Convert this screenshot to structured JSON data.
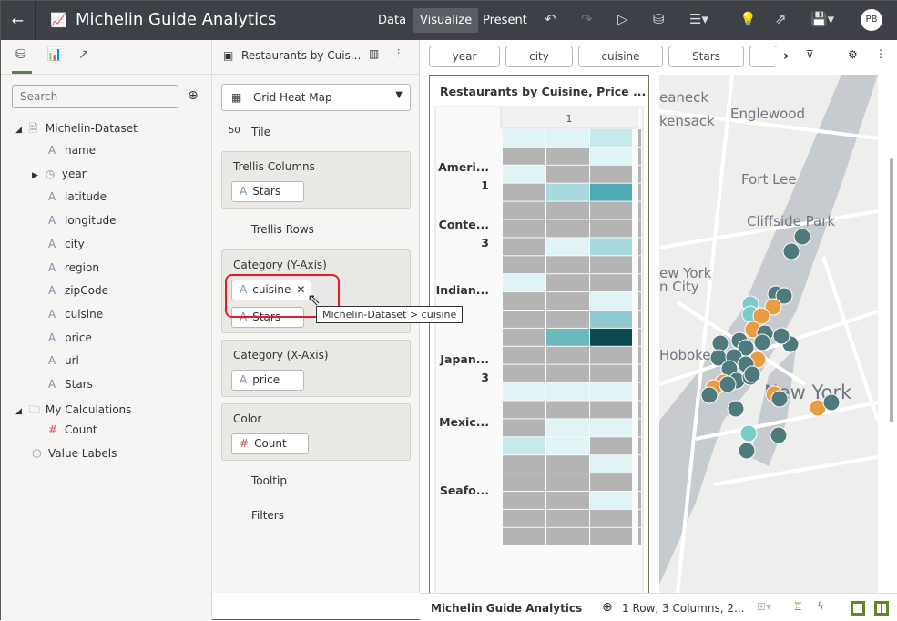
{
  "header": {
    "title": "Michelin Guide Analytics",
    "nav": [
      "Data",
      "Visualize",
      "Present"
    ],
    "active": "Visualize",
    "avatar": "PB"
  },
  "left_panel": {
    "search_placeholder": "Search",
    "dataset": "Michelin-Dataset",
    "fields": [
      {
        "icon": "A",
        "label": "name"
      },
      {
        "icon": "clock",
        "label": "year"
      },
      {
        "icon": "A",
        "label": "latitude"
      },
      {
        "icon": "A",
        "label": "longitude"
      },
      {
        "icon": "A",
        "label": "city"
      },
      {
        "icon": "A",
        "label": "region"
      },
      {
        "icon": "A",
        "label": "zipCode"
      },
      {
        "icon": "A",
        "label": "cuisine"
      },
      {
        "icon": "A",
        "label": "price"
      },
      {
        "icon": "A",
        "label": "url"
      },
      {
        "icon": "A",
        "label": "Stars"
      }
    ],
    "calculations": "My Calculations",
    "calc_fields": [
      {
        "icon": "#",
        "label": "Count"
      }
    ],
    "value_labels": "Value Labels"
  },
  "grammar": {
    "viz_title": "Restaurants by Cuis...",
    "viz_type": "Grid Heat Map",
    "tile": "Tile",
    "trellis_columns": {
      "label": "Trellis Columns",
      "pills": [
        "Stars"
      ]
    },
    "trellis_rows": "Trellis Rows",
    "category_y": {
      "label": "Category (Y-Axis)",
      "pills": [
        "cuisine",
        "Stars"
      ]
    },
    "category_x": {
      "label": "Category (X-Axis)",
      "pills": [
        "price"
      ]
    },
    "color": {
      "label": "Color",
      "pills": [
        "Count"
      ]
    },
    "tooltip": "Tooltip",
    "filters": "Filters"
  },
  "tooltip": "Michelin-Dataset > cuisine",
  "filter_bar": [
    "year",
    "city",
    "cuisine",
    "Stars"
  ],
  "chart_data": {
    "type": "heatmap",
    "title": "Restaurants by Cuisine, Price ...",
    "trellis_column": "1",
    "row_labels": [
      {
        "label": "Ameri...",
        "sub": "1"
      },
      {
        "label": "Conte...",
        "sub": "3"
      },
      {
        "label": "Indian...",
        "sub": ""
      },
      {
        "label": "Japan...",
        "sub": "3"
      },
      {
        "label": "Mexic...",
        "sub": ""
      },
      {
        "label": "Seafo...",
        "sub": ""
      }
    ],
    "cells": [
      [
        1,
        1,
        2
      ],
      [
        0,
        0,
        1
      ],
      [
        1,
        0,
        0
      ],
      [
        0,
        3,
        6
      ],
      [
        0,
        0,
        0
      ],
      [
        0,
        0,
        0
      ],
      [
        0,
        1,
        3
      ],
      [
        0,
        0,
        0
      ],
      [
        1,
        0,
        0
      ],
      [
        0,
        0,
        1
      ],
      [
        0,
        0,
        4
      ],
      [
        0,
        5,
        7
      ],
      [
        0,
        0,
        0
      ],
      [
        0,
        0,
        0
      ],
      [
        1,
        1,
        1
      ],
      [
        0,
        0,
        0
      ],
      [
        0,
        1,
        1
      ],
      [
        2,
        1,
        0
      ],
      [
        0,
        0,
        1
      ],
      [
        0,
        0,
        0
      ],
      [
        0,
        0,
        1
      ],
      [
        0,
        0,
        0
      ],
      [
        0,
        0,
        0
      ]
    ],
    "null_color": "#b4b4b4",
    "scale": [
      "#e0f4f6",
      "#c6e9ec",
      "#a8d9de",
      "#8ecbd0",
      "#6bb8bf",
      "#4eaab4",
      "#0d4950"
    ]
  },
  "map": {
    "labels": [
      "eaneck",
      "Englewood",
      "kensack",
      "Fort Lee",
      "Cliffside Park",
      "ew York",
      "n City",
      "Hoboken",
      "New York"
    ],
    "colors": {
      "teal": "#4e7a7d",
      "orange": "#e89d45",
      "light": "#7ccbc8"
    }
  },
  "footer": {
    "title": "Michelin Guide Analytics",
    "status": "1 Row, 3 Columns, 2..."
  }
}
